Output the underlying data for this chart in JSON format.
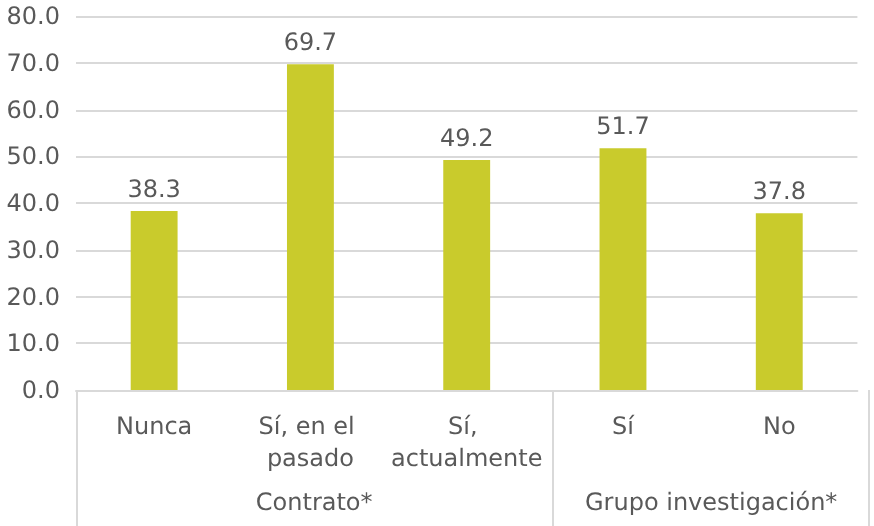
{
  "chart_data": {
    "type": "bar",
    "categories": [
      "Nunca",
      "Sí, en el pasado",
      "Sí, actualmente",
      "Sí",
      "No"
    ],
    "values": [
      38.3,
      69.7,
      49.2,
      51.7,
      37.8
    ],
    "color": "#c9cb2c",
    "ylim": [
      0,
      80
    ],
    "yticks": [
      {
        "value": 0,
        "label": "0.0"
      },
      {
        "value": 10,
        "label": "10.0"
      },
      {
        "value": 20,
        "label": "20.0"
      },
      {
        "value": 30,
        "label": "30.0"
      },
      {
        "value": 40,
        "label": "40.0"
      },
      {
        "value": 50,
        "label": "50.0"
      },
      {
        "value": 60,
        "label": "60.0"
      },
      {
        "value": 70,
        "label": "70.0"
      },
      {
        "value": 80,
        "label": "80.0"
      }
    ],
    "grid": "y",
    "data_labels": true,
    "annotations": [
      "Contrato*",
      "Grupo investigación*"
    ]
  }
}
